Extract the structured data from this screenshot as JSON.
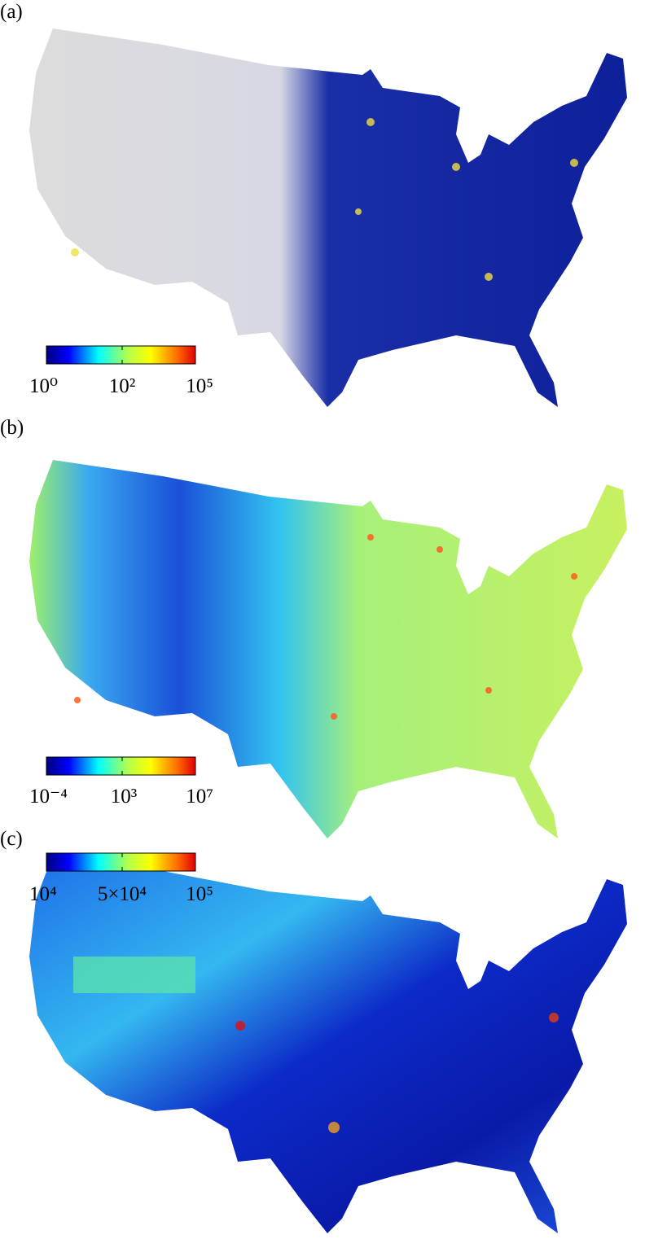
{
  "panels": [
    {
      "label": "(a)",
      "colorbar": {
        "tick_labels": [
          "10⁰",
          "10²",
          "10⁵"
        ]
      }
    },
    {
      "label": "(b)",
      "colorbar": {
        "tick_labels": [
          "10⁻⁴",
          "10³",
          "10⁷"
        ]
      }
    },
    {
      "label": "(c)",
      "colorbar": {
        "tick_labels": [
          "10⁴",
          "5×10⁴",
          "10⁵"
        ]
      }
    }
  ]
}
